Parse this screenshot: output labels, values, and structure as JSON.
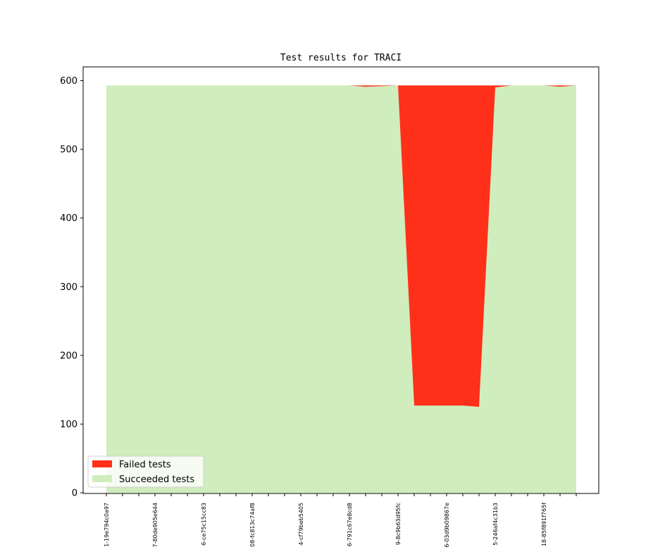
{
  "chart_data": {
    "type": "area",
    "title": "Test results for TRACI",
    "xlabel": "",
    "ylabel": "",
    "ylim": [
      0,
      620
    ],
    "yticks": [
      0,
      100,
      200,
      300,
      400,
      500,
      600
    ],
    "grid": false,
    "legend_position": "lower-left",
    "stacking": "stacked",
    "colors": {
      "failed": "#ff3019",
      "succeeded": "#cfedbd"
    },
    "xtick_labels": [
      {
        "index": 0,
        "label": "1-19e794c0a97"
      },
      {
        "index": 3,
        "label": "7-80de905e644"
      },
      {
        "index": 6,
        "label": "6-ce75c15cc83"
      },
      {
        "index": 9,
        "label": "08-fc813c74af8"
      },
      {
        "index": 12,
        "label": "4-cf79beb5405"
      },
      {
        "index": 15,
        "label": "6-791c67e8cd8"
      },
      {
        "index": 18,
        "label": "9-8c9b63d95fc"
      },
      {
        "index": 21,
        "label": "6-03d9b09867e"
      },
      {
        "index": 24,
        "label": "5-246af4c31b3"
      },
      {
        "index": 27,
        "label": "18-85f891f765f"
      }
    ],
    "series": [
      {
        "name": "Succeeded tests",
        "values": [
          593,
          593,
          593,
          593,
          593,
          593,
          593,
          593,
          593,
          593,
          593,
          593,
          593,
          593,
          593,
          593,
          591,
          592,
          593,
          127,
          127,
          127,
          127,
          125,
          590,
          593,
          593,
          593,
          591,
          593
        ]
      },
      {
        "name": "Failed tests",
        "values": [
          0,
          0,
          0,
          0,
          0,
          0,
          0,
          0,
          0,
          0,
          0,
          0,
          0,
          0,
          0,
          0,
          2,
          1,
          0,
          466,
          466,
          466,
          466,
          468,
          3,
          0,
          0,
          0,
          2,
          0
        ]
      }
    ]
  }
}
